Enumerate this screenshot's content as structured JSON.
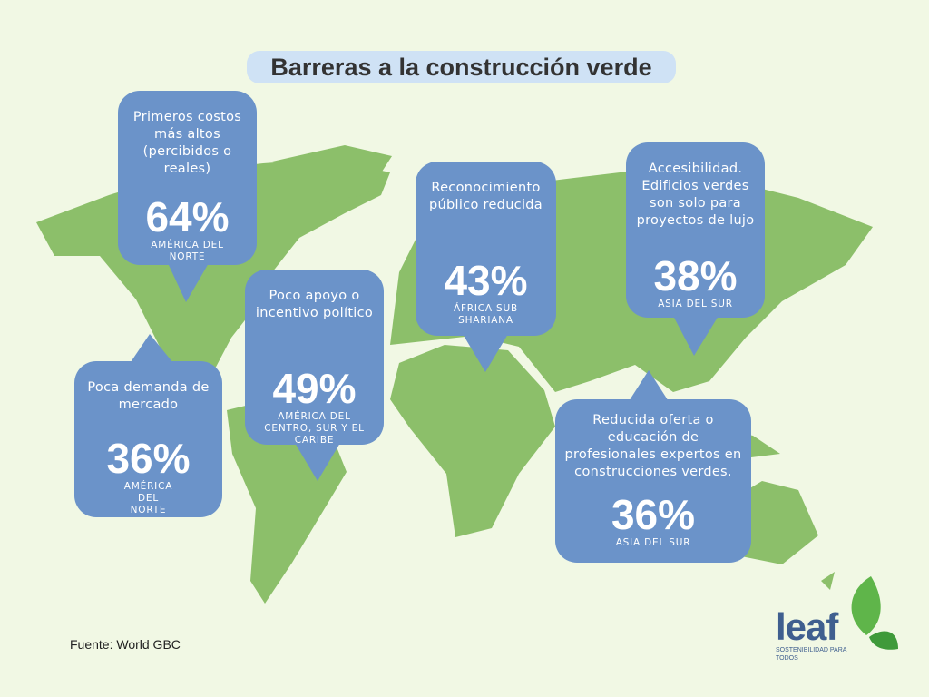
{
  "title": "Barreras a la construcción verde",
  "callouts": [
    {
      "label": "Primeros costos más altos (percibidos o reales)",
      "value": "64%",
      "region": "AMÉRICA DEL NORTE"
    },
    {
      "label": "Poca demanda de mercado",
      "value": "36%",
      "region": "AMÉRICA DEL NORTE"
    },
    {
      "label": "Poco apoyo o incentivo político",
      "value": "49%",
      "region": "AMÉRICA DEL CENTRO, SUR Y EL CARIBE"
    },
    {
      "label": "Reconocimiento público reducida",
      "value": "43%",
      "region": "ÁFRICA SUB SHARIANA"
    },
    {
      "label": "Accesibilidad. Edificios verdes son solo para proyectos de lujo",
      "value": "38%",
      "region": "ASIA DEL SUR"
    },
    {
      "label": "Reducida oferta o educación de profesionales expertos en construcciones verdes.",
      "value": "36%",
      "region": "ASIA DEL SUR"
    }
  ],
  "source": "Fuente:  World GBC",
  "logo": {
    "name": "leaf",
    "tagline": "SOSTENIBILIDAD PARA TODOS"
  }
}
